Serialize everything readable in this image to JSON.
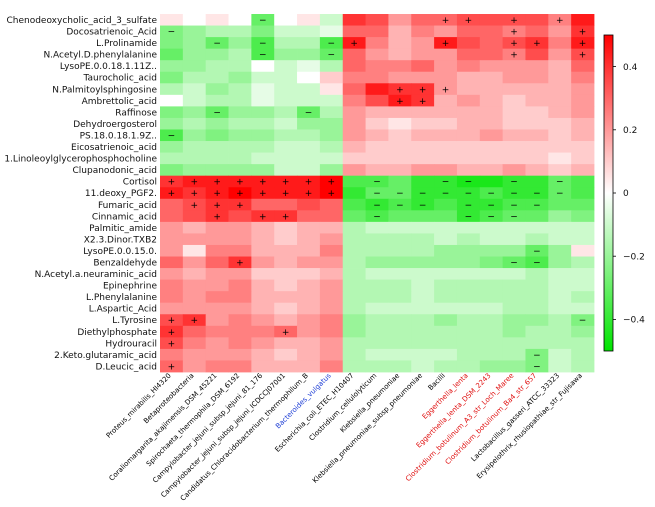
{
  "chart_data": {
    "type": "heatmap",
    "rows": [
      "Chenodeoxycholic_acid_3_sulfate",
      "Docosatrienoic_Acid",
      "L.Prolinamide",
      "N.Acetyl.D.phenylalanine",
      "LysoPE.0.0.18.1.11Z..",
      "Taurocholic_acid",
      "N.Palmitoylsphingosine",
      "Ambrettolic_acid",
      "Raffinose",
      "Dehydroergosterol",
      "PS.18.0.18.1.9Z..",
      "Eicosatrienoic_acid",
      "1.Linoleoylglycerophosphocholine",
      "Clupanodonic_acid",
      "Cortisol",
      "11.deoxy_PGF2.",
      "Fumaric_acid",
      "Cinnamic_acid",
      "Palmitic_amide",
      "X2.3.Dinor.TXB2",
      "LysoPE.0.0.15.0.",
      "Benzaldehyde",
      "N.Acetyl.a.neuraminic_acid",
      "Epinephrine",
      "L.Phenylalanine",
      "L.Aspartic_Acid",
      "L.Tyrosine",
      "Diethylphosphate",
      "Hydrouracil",
      "2.Keto.glutaramic_acid",
      "D.Leucic_acid"
    ],
    "columns": [
      {
        "label": "Proteus_mirabilis_HI4320",
        "color": "#000000"
      },
      {
        "label": "Betaproteobacteria",
        "color": "#000000"
      },
      {
        "label": "Coraliomargarita_akajimensis_DSM_45221",
        "color": "#000000"
      },
      {
        "label": "Spirochaeta_thermophila_DSM_6192",
        "color": "#000000"
      },
      {
        "label": "Campylobacter_jejuni_subsp_jejuni_81_176",
        "color": "#000000"
      },
      {
        "label": "Campylobacter_jejuni_subsp_jejuni_ICDCCJ07001",
        "color": "#000000"
      },
      {
        "label": "Candidatus_Chloracidobacterium_thermophilum_B",
        "color": "#000000"
      },
      {
        "label": "Bacteroides_vulgatus",
        "color": "#1f3fd6"
      },
      {
        "label": "Escherichia_coli_ETEC_H10407",
        "color": "#000000"
      },
      {
        "label": "Clostridium_cellulolyticum",
        "color": "#000000"
      },
      {
        "label": "Klebsiella_pneumoniae",
        "color": "#000000"
      },
      {
        "label": "Klebsiella_pneumoniae_subsp_pneumoniae",
        "color": "#000000"
      },
      {
        "label": "Bacilli",
        "color": "#000000"
      },
      {
        "label": "Eggerthella_lenta",
        "color": "#e01010"
      },
      {
        "label": "Eggerthella_lenta_DSM_2243",
        "color": "#e01010"
      },
      {
        "label": "Clostridium_botulinum_A3_str_Loch_Maree",
        "color": "#e01010"
      },
      {
        "label": "Clostridium_botulinum_Ba4_str_657",
        "color": "#e01010"
      },
      {
        "label": "Lactobacillus_gasseri_ATCC_33323",
        "color": "#000000"
      },
      {
        "label": "Erysipelothrix_rhusiopathiae_str_Fujisawa",
        "color": "#000000"
      }
    ],
    "values": [
      [
        0.05,
        0.0,
        0.05,
        0.0,
        -0.3,
        0.0,
        0.05,
        -0.1,
        0.4,
        0.35,
        0.2,
        0.3,
        0.3,
        0.35,
        0.35,
        0.35,
        0.35,
        0.25,
        0.45
      ],
      [
        -0.25,
        -0.2,
        -0.15,
        -0.15,
        -0.25,
        -0.1,
        -0.1,
        -0.05,
        0.3,
        0.3,
        0.15,
        0.25,
        0.2,
        0.3,
        0.3,
        0.25,
        0.3,
        0.2,
        0.4
      ],
      [
        -0.25,
        -0.2,
        -0.3,
        -0.2,
        -0.35,
        -0.15,
        -0.15,
        -0.35,
        0.45,
        0.25,
        0.15,
        0.2,
        0.45,
        0.35,
        0.3,
        0.35,
        0.4,
        0.25,
        0.45
      ],
      [
        -0.3,
        -0.2,
        -0.2,
        -0.15,
        -0.35,
        -0.2,
        -0.2,
        -0.3,
        0.3,
        0.2,
        0.15,
        0.2,
        0.2,
        0.3,
        0.3,
        0.25,
        0.35,
        0.2,
        0.35
      ],
      [
        -0.2,
        -0.2,
        -0.15,
        -0.15,
        0.0,
        -0.1,
        -0.05,
        -0.15,
        0.3,
        0.25,
        0.25,
        0.3,
        0.2,
        0.25,
        0.2,
        0.2,
        0.2,
        0.15,
        0.3
      ],
      [
        -0.25,
        -0.15,
        -0.15,
        -0.2,
        -0.1,
        -0.1,
        0.0,
        0.1,
        0.25,
        0.25,
        0.2,
        0.2,
        0.2,
        0.15,
        0.15,
        0.2,
        0.2,
        0.15,
        0.25
      ],
      [
        -0.15,
        -0.1,
        -0.2,
        -0.15,
        -0.05,
        -0.1,
        -0.1,
        0.05,
        0.3,
        0.45,
        0.4,
        0.4,
        0.2,
        0.15,
        0.15,
        0.15,
        0.15,
        0.15,
        0.2
      ],
      [
        0.0,
        -0.1,
        -0.15,
        -0.15,
        -0.05,
        -0.1,
        -0.1,
        -0.1,
        0.25,
        0.35,
        0.45,
        0.4,
        0.15,
        0.2,
        0.15,
        0.1,
        0.15,
        0.15,
        0.2
      ],
      [
        -0.25,
        -0.2,
        -0.3,
        -0.2,
        -0.2,
        -0.15,
        -0.3,
        -0.15,
        0.2,
        0.15,
        0.15,
        0.15,
        0.15,
        0.15,
        0.15,
        0.1,
        0.1,
        0.15,
        0.2
      ],
      [
        -0.2,
        -0.15,
        -0.2,
        -0.15,
        -0.15,
        -0.1,
        -0.2,
        -0.2,
        0.2,
        0.1,
        0.05,
        0.1,
        0.1,
        0.15,
        0.15,
        0.1,
        0.1,
        0.1,
        0.15
      ],
      [
        -0.35,
        -0.2,
        -0.25,
        -0.2,
        -0.2,
        -0.15,
        -0.15,
        -0.2,
        0.2,
        0.15,
        0.1,
        0.15,
        0.15,
        0.15,
        0.2,
        0.15,
        0.15,
        0.1,
        0.15
      ],
      [
        -0.2,
        -0.15,
        -0.15,
        -0.15,
        -0.15,
        -0.1,
        -0.1,
        -0.15,
        0.15,
        0.1,
        0.1,
        0.1,
        0.1,
        0.1,
        0.1,
        0.1,
        0.1,
        0.1,
        0.1
      ],
      [
        -0.15,
        -0.15,
        -0.15,
        -0.15,
        -0.1,
        -0.1,
        -0.1,
        -0.1,
        0.1,
        0.1,
        0.1,
        0.1,
        0.1,
        0.1,
        0.1,
        0.1,
        0.1,
        0.05,
        0.1
      ],
      [
        -0.25,
        -0.2,
        -0.2,
        -0.2,
        -0.2,
        -0.1,
        -0.1,
        -0.2,
        0.2,
        0.15,
        0.15,
        0.2,
        0.2,
        0.15,
        0.15,
        0.2,
        0.15,
        0.1,
        0.15
      ],
      [
        0.4,
        0.45,
        0.45,
        0.45,
        0.45,
        0.45,
        0.45,
        0.5,
        -0.35,
        -0.35,
        -0.3,
        -0.4,
        -0.4,
        -0.45,
        -0.45,
        -0.4,
        -0.4,
        -0.3,
        -0.35
      ],
      [
        0.45,
        0.4,
        0.45,
        0.5,
        0.45,
        0.45,
        0.45,
        0.5,
        -0.4,
        -0.3,
        -0.3,
        -0.4,
        -0.4,
        -0.4,
        -0.35,
        -0.4,
        -0.4,
        -0.3,
        -0.35
      ],
      [
        0.3,
        0.35,
        0.4,
        0.4,
        0.3,
        0.3,
        0.35,
        0.3,
        -0.35,
        -0.4,
        -0.35,
        -0.4,
        -0.35,
        -0.4,
        -0.4,
        -0.35,
        -0.35,
        -0.3,
        -0.3
      ],
      [
        0.3,
        0.35,
        0.4,
        0.35,
        0.4,
        0.4,
        0.3,
        0.3,
        -0.3,
        -0.35,
        -0.3,
        -0.3,
        -0.3,
        -0.4,
        -0.35,
        -0.3,
        -0.3,
        -0.2,
        -0.25
      ],
      [
        0.2,
        0.15,
        0.2,
        0.2,
        0.15,
        0.1,
        0.15,
        0.15,
        -0.15,
        -0.1,
        -0.1,
        -0.1,
        -0.1,
        -0.1,
        -0.1,
        -0.1,
        -0.1,
        -0.1,
        -0.1
      ],
      [
        0.2,
        0.2,
        0.2,
        0.2,
        0.15,
        0.1,
        0.15,
        0.2,
        -0.15,
        -0.15,
        -0.15,
        -0.15,
        -0.1,
        -0.15,
        -0.1,
        -0.1,
        -0.15,
        -0.1,
        -0.1
      ],
      [
        0.2,
        0.05,
        0.25,
        0.25,
        0.15,
        0.15,
        0.15,
        0.25,
        -0.15,
        -0.15,
        -0.15,
        -0.15,
        -0.2,
        -0.2,
        -0.2,
        -0.2,
        -0.3,
        -0.2,
        0.05
      ],
      [
        0.3,
        0.2,
        0.3,
        0.4,
        0.2,
        0.15,
        0.2,
        0.2,
        -0.15,
        -0.2,
        -0.2,
        -0.2,
        -0.2,
        -0.2,
        -0.25,
        -0.3,
        -0.35,
        -0.2,
        -0.15
      ],
      [
        0.2,
        0.15,
        0.2,
        0.2,
        0.1,
        0.1,
        0.1,
        0.15,
        -0.15,
        -0.1,
        -0.1,
        -0.1,
        -0.1,
        -0.1,
        -0.1,
        -0.1,
        -0.15,
        -0.1,
        -0.1
      ],
      [
        0.25,
        0.2,
        0.2,
        0.25,
        0.15,
        0.1,
        0.15,
        0.2,
        -0.15,
        -0.15,
        -0.15,
        -0.1,
        -0.15,
        -0.15,
        -0.15,
        -0.15,
        -0.15,
        -0.1,
        -0.1
      ],
      [
        0.25,
        0.2,
        0.25,
        0.25,
        0.15,
        0.15,
        0.15,
        0.2,
        -0.15,
        -0.15,
        -0.15,
        -0.1,
        -0.15,
        -0.15,
        -0.15,
        -0.15,
        -0.15,
        -0.1,
        -0.15
      ],
      [
        0.2,
        0.2,
        0.2,
        0.2,
        0.15,
        0.1,
        0.15,
        0.2,
        -0.15,
        -0.1,
        -0.1,
        -0.1,
        -0.1,
        -0.1,
        -0.1,
        -0.15,
        -0.15,
        -0.1,
        -0.1
      ],
      [
        0.35,
        0.4,
        0.2,
        0.25,
        0.2,
        0.15,
        0.2,
        0.25,
        -0.2,
        -0.15,
        -0.15,
        -0.15,
        -0.2,
        -0.15,
        -0.15,
        -0.2,
        -0.2,
        -0.15,
        -0.25
      ],
      [
        0.4,
        0.3,
        0.25,
        0.25,
        0.25,
        0.3,
        0.2,
        0.25,
        -0.2,
        -0.15,
        -0.15,
        -0.15,
        -0.15,
        -0.15,
        -0.15,
        -0.2,
        -0.15,
        -0.15,
        -0.2
      ],
      [
        0.35,
        0.25,
        0.2,
        0.25,
        0.2,
        0.15,
        0.15,
        0.2,
        -0.15,
        -0.15,
        -0.15,
        -0.15,
        -0.15,
        -0.15,
        -0.15,
        -0.15,
        -0.15,
        -0.15,
        -0.15
      ],
      [
        0.25,
        0.2,
        0.2,
        0.2,
        0.15,
        0.1,
        0.15,
        0.2,
        -0.15,
        -0.1,
        -0.1,
        -0.1,
        -0.1,
        -0.15,
        -0.15,
        -0.15,
        -0.25,
        -0.1,
        -0.15
      ],
      [
        0.3,
        0.2,
        0.25,
        0.25,
        0.15,
        0.15,
        0.15,
        0.25,
        -0.15,
        -0.15,
        -0.15,
        -0.1,
        -0.15,
        -0.15,
        -0.2,
        -0.2,
        -0.25,
        -0.1,
        -0.15
      ]
    ],
    "significance": {
      "plus": [
        [
          0,
          12
        ],
        [
          0,
          13
        ],
        [
          0,
          15
        ],
        [
          0,
          17
        ],
        [
          1,
          15
        ],
        [
          1,
          18
        ],
        [
          2,
          8
        ],
        [
          2,
          12
        ],
        [
          2,
          15
        ],
        [
          2,
          16
        ],
        [
          2,
          18
        ],
        [
          3,
          15
        ],
        [
          3,
          18
        ],
        [
          6,
          10
        ],
        [
          6,
          11
        ],
        [
          6,
          12
        ],
        [
          7,
          10
        ],
        [
          7,
          11
        ],
        [
          14,
          0
        ],
        [
          14,
          1
        ],
        [
          14,
          2
        ],
        [
          14,
          3
        ],
        [
          14,
          4
        ],
        [
          14,
          5
        ],
        [
          14,
          6
        ],
        [
          14,
          7
        ],
        [
          15,
          0
        ],
        [
          15,
          1
        ],
        [
          15,
          2
        ],
        [
          15,
          3
        ],
        [
          15,
          4
        ],
        [
          15,
          5
        ],
        [
          15,
          6
        ],
        [
          15,
          7
        ],
        [
          16,
          1
        ],
        [
          16,
          2
        ],
        [
          16,
          3
        ],
        [
          17,
          2
        ],
        [
          17,
          4
        ],
        [
          17,
          5
        ],
        [
          21,
          3
        ],
        [
          26,
          0
        ],
        [
          26,
          1
        ],
        [
          27,
          0
        ],
        [
          27,
          5
        ],
        [
          28,
          0
        ],
        [
          30,
          0
        ]
      ],
      "minus": [
        [
          0,
          4
        ],
        [
          1,
          0
        ],
        [
          2,
          2
        ],
        [
          2,
          4
        ],
        [
          2,
          7
        ],
        [
          3,
          4
        ],
        [
          3,
          7
        ],
        [
          8,
          2
        ],
        [
          8,
          6
        ],
        [
          10,
          0
        ],
        [
          14,
          9
        ],
        [
          14,
          12
        ],
        [
          14,
          13
        ],
        [
          14,
          15
        ],
        [
          14,
          17
        ],
        [
          15,
          9
        ],
        [
          15,
          10
        ],
        [
          15,
          11
        ],
        [
          15,
          12
        ],
        [
          15,
          13
        ],
        [
          15,
          14
        ],
        [
          15,
          15
        ],
        [
          15,
          16
        ],
        [
          15,
          17
        ],
        [
          16,
          9
        ],
        [
          16,
          10
        ],
        [
          16,
          11
        ],
        [
          16,
          13
        ],
        [
          16,
          14
        ],
        [
          16,
          15
        ],
        [
          16,
          16
        ],
        [
          17,
          9
        ],
        [
          17,
          13
        ],
        [
          17,
          14
        ],
        [
          17,
          15
        ],
        [
          20,
          16
        ],
        [
          21,
          15
        ],
        [
          21,
          16
        ],
        [
          26,
          18
        ],
        [
          29,
          16
        ],
        [
          30,
          16
        ]
      ]
    },
    "colorscale": {
      "min": -0.5,
      "max": 0.5,
      "low_color": "#00e400",
      "mid_color": "#ffffff",
      "high_color": "#ff0000",
      "ticks": [
        0.4,
        0.2,
        0,
        -0.2,
        -0.4
      ],
      "tick_labels": [
        "0.4",
        "0.2",
        "0",
        "−0.2",
        "−0.4"
      ]
    },
    "plus_symbol": "+",
    "minus_symbol": "−"
  }
}
